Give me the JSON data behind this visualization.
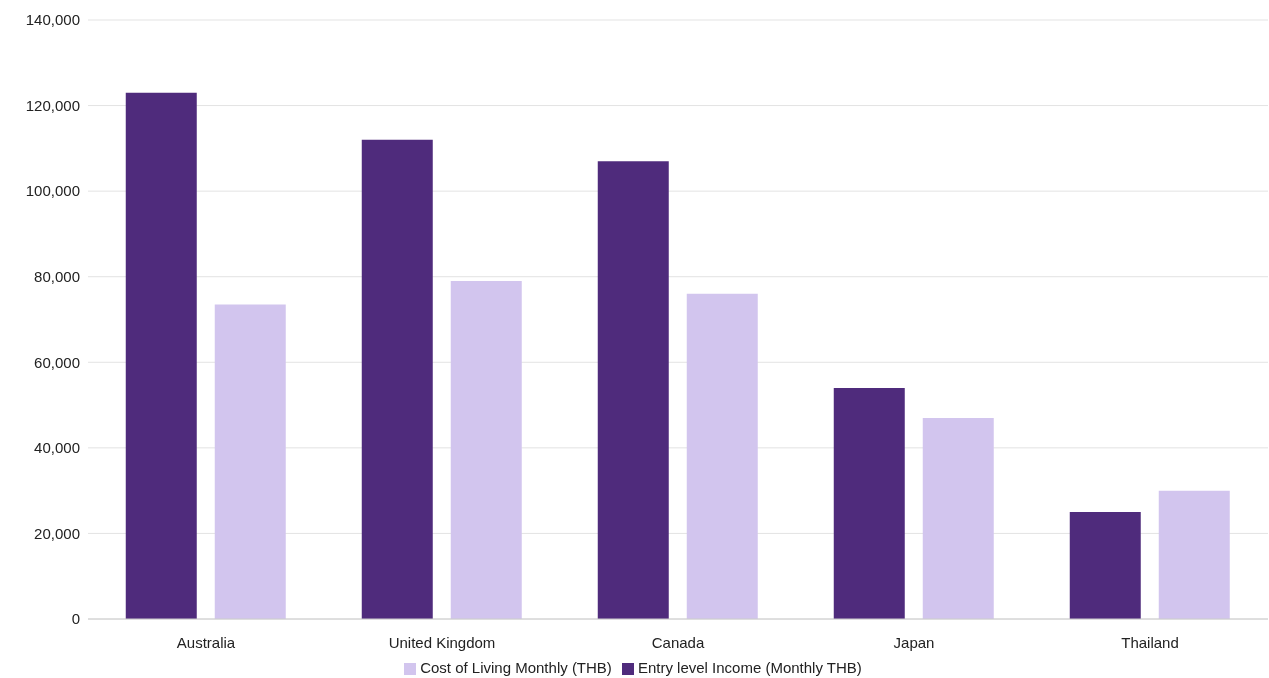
{
  "chart_data": {
    "type": "bar",
    "categories": [
      "Australia",
      "United Kingdom",
      "Canada",
      "Japan",
      "Thailand"
    ],
    "series": [
      {
        "name": "Entry level Income (Monthly THB)",
        "color": "#4f2b7c",
        "values": [
          123000,
          112000,
          107000,
          54000,
          25000
        ]
      },
      {
        "name": "Cost of Living Monthly (THB)",
        "color": "#d2c5ee",
        "values": [
          73500,
          79000,
          76000,
          47000,
          30000
        ]
      }
    ],
    "ylim": [
      0,
      140000
    ],
    "yticks": [
      {
        "value": 0,
        "label": "0"
      },
      {
        "value": 20000,
        "label": "20,000"
      },
      {
        "value": 40000,
        "label": "40,000"
      },
      {
        "value": 60000,
        "label": "60,000"
      },
      {
        "value": 80000,
        "label": "80,000"
      },
      {
        "value": 100000,
        "label": "100,000"
      },
      {
        "value": 120000,
        "label": "120,000"
      },
      {
        "value": 140000,
        "label": "140,000"
      }
    ],
    "grid": "y",
    "legend": "bottom"
  }
}
